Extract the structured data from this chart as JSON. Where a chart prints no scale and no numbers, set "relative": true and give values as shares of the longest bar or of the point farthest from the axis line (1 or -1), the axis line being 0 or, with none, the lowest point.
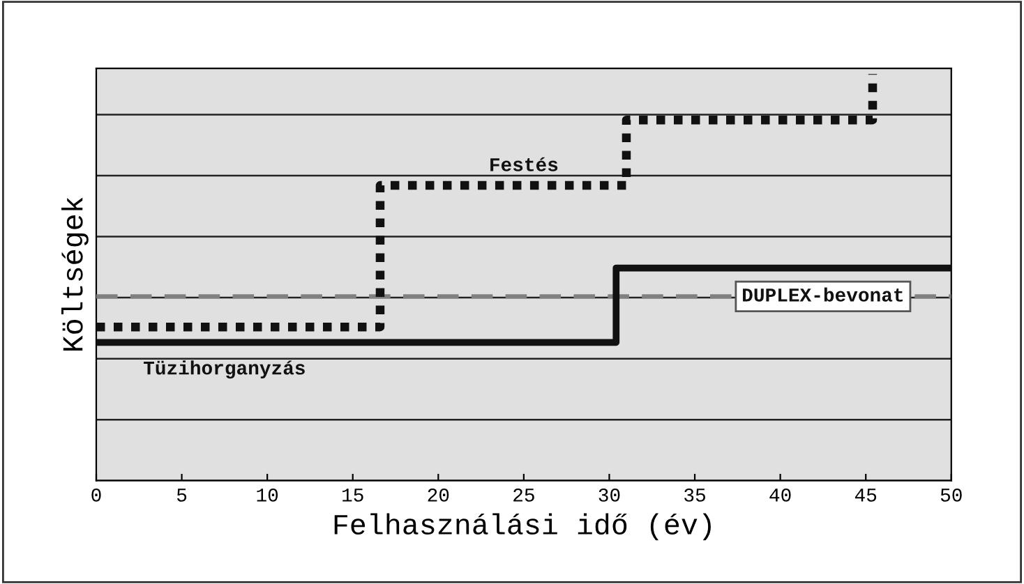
{
  "chart_data": {
    "type": "step",
    "xlabel": "Felhasználási idő (év)",
    "ylabel": "Költségek",
    "relative": true,
    "xlim": [
      0,
      50
    ],
    "xticks": [
      0,
      5,
      10,
      15,
      20,
      25,
      30,
      35,
      40,
      45,
      50
    ],
    "tick_labels": "x",
    "grid": "y",
    "legend": false,
    "series": [
      {
        "name": "Festés",
        "color": "#111111",
        "line_style": "dotted",
        "x": [
          0,
          16.6,
          31,
          45.4
        ],
        "values": [
          0.378,
          0.726,
          0.887,
          1
        ]
      },
      {
        "name": "Tüzihorganyzás",
        "color": "#111111",
        "line_style": "solid",
        "x": [
          0,
          30.4,
          50
        ],
        "values": [
          0.34,
          0.523,
          0.523
        ]
      },
      {
        "name": "DUPLEX-bevonat",
        "color": "#808080",
        "line_style": "dashed",
        "x": [
          0,
          50
        ],
        "values": [
          0.453,
          0.453
        ]
      }
    ]
  }
}
